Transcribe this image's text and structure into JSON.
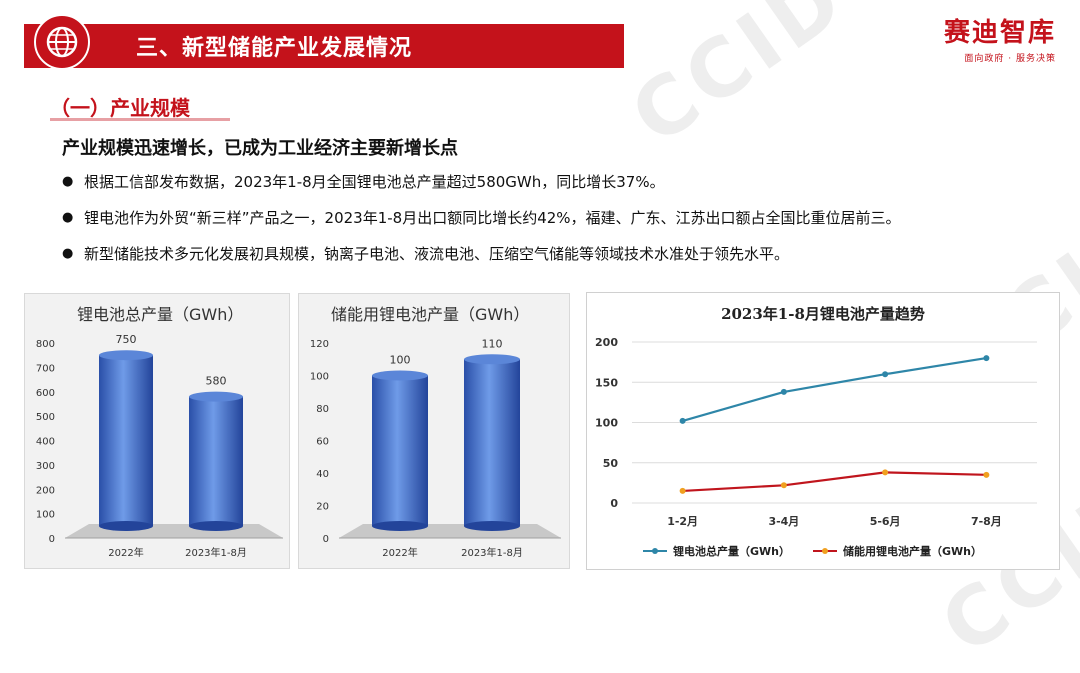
{
  "header": {
    "title": "三、新型储能产业发展情况"
  },
  "brand": {
    "name": "赛迪智库",
    "slogan": "面向政府 · 服务决策",
    "watermark": "CCID"
  },
  "section": {
    "title": "（一）产业规模"
  },
  "lead": "产业规模迅速增长，已成为工业经济主要新增长点",
  "bullets": [
    "根据工信部发布数据，2023年1-8月全国锂电池总产量超过580GWh，同比增长37%。",
    "锂电池作为外贸“新三样”产品之一，2023年1-8月出口额同比增长约42%，福建、广东、江苏出口额占全国比重位居前三。",
    "新型储能技术多元化发展初具规模，钠离子电池、液流电池、压缩空气储能等领域技术水准处于领先水平。"
  ],
  "colors": {
    "brand_red": "#c4121b",
    "bar_blue": "#3b6fd0",
    "series1": "#2e86a8",
    "series2": "#c0151d",
    "marker2": "#f0a020"
  },
  "chart_data": [
    {
      "type": "bar",
      "title": "锂电池总产量（GWh）",
      "categories": [
        "2022年",
        "2023年1-8月"
      ],
      "values": [
        750,
        580
      ],
      "ylim": [
        0,
        800
      ],
      "yticks": [
        "0",
        "100",
        "200",
        "300",
        "400",
        "500",
        "600",
        "700",
        "800"
      ],
      "style": "3d-cylinder"
    },
    {
      "type": "bar",
      "title": "储能用锂电池产量（GWh）",
      "categories": [
        "2022年",
        "2023年1-8月"
      ],
      "values": [
        100,
        110
      ],
      "ylim": [
        0,
        120
      ],
      "yticks": [
        "0",
        "20",
        "40",
        "60",
        "80",
        "100",
        "120"
      ],
      "style": "3d-cylinder"
    },
    {
      "type": "line",
      "title": "2023年1-8月锂电池产量趋势",
      "categories": [
        "1-2月",
        "3-4月",
        "5-6月",
        "7-8月"
      ],
      "series": [
        {
          "name": "锂电池总产量（GWh）",
          "values": [
            102,
            138,
            160,
            180
          ]
        },
        {
          "name": "储能用锂电池产量（GWh）",
          "values": [
            15,
            22,
            38,
            35
          ]
        }
      ],
      "ylim": [
        0,
        200
      ],
      "yticks": [
        "0",
        "50",
        "100",
        "150",
        "200"
      ],
      "grid": true,
      "legend": "bottom"
    }
  ]
}
